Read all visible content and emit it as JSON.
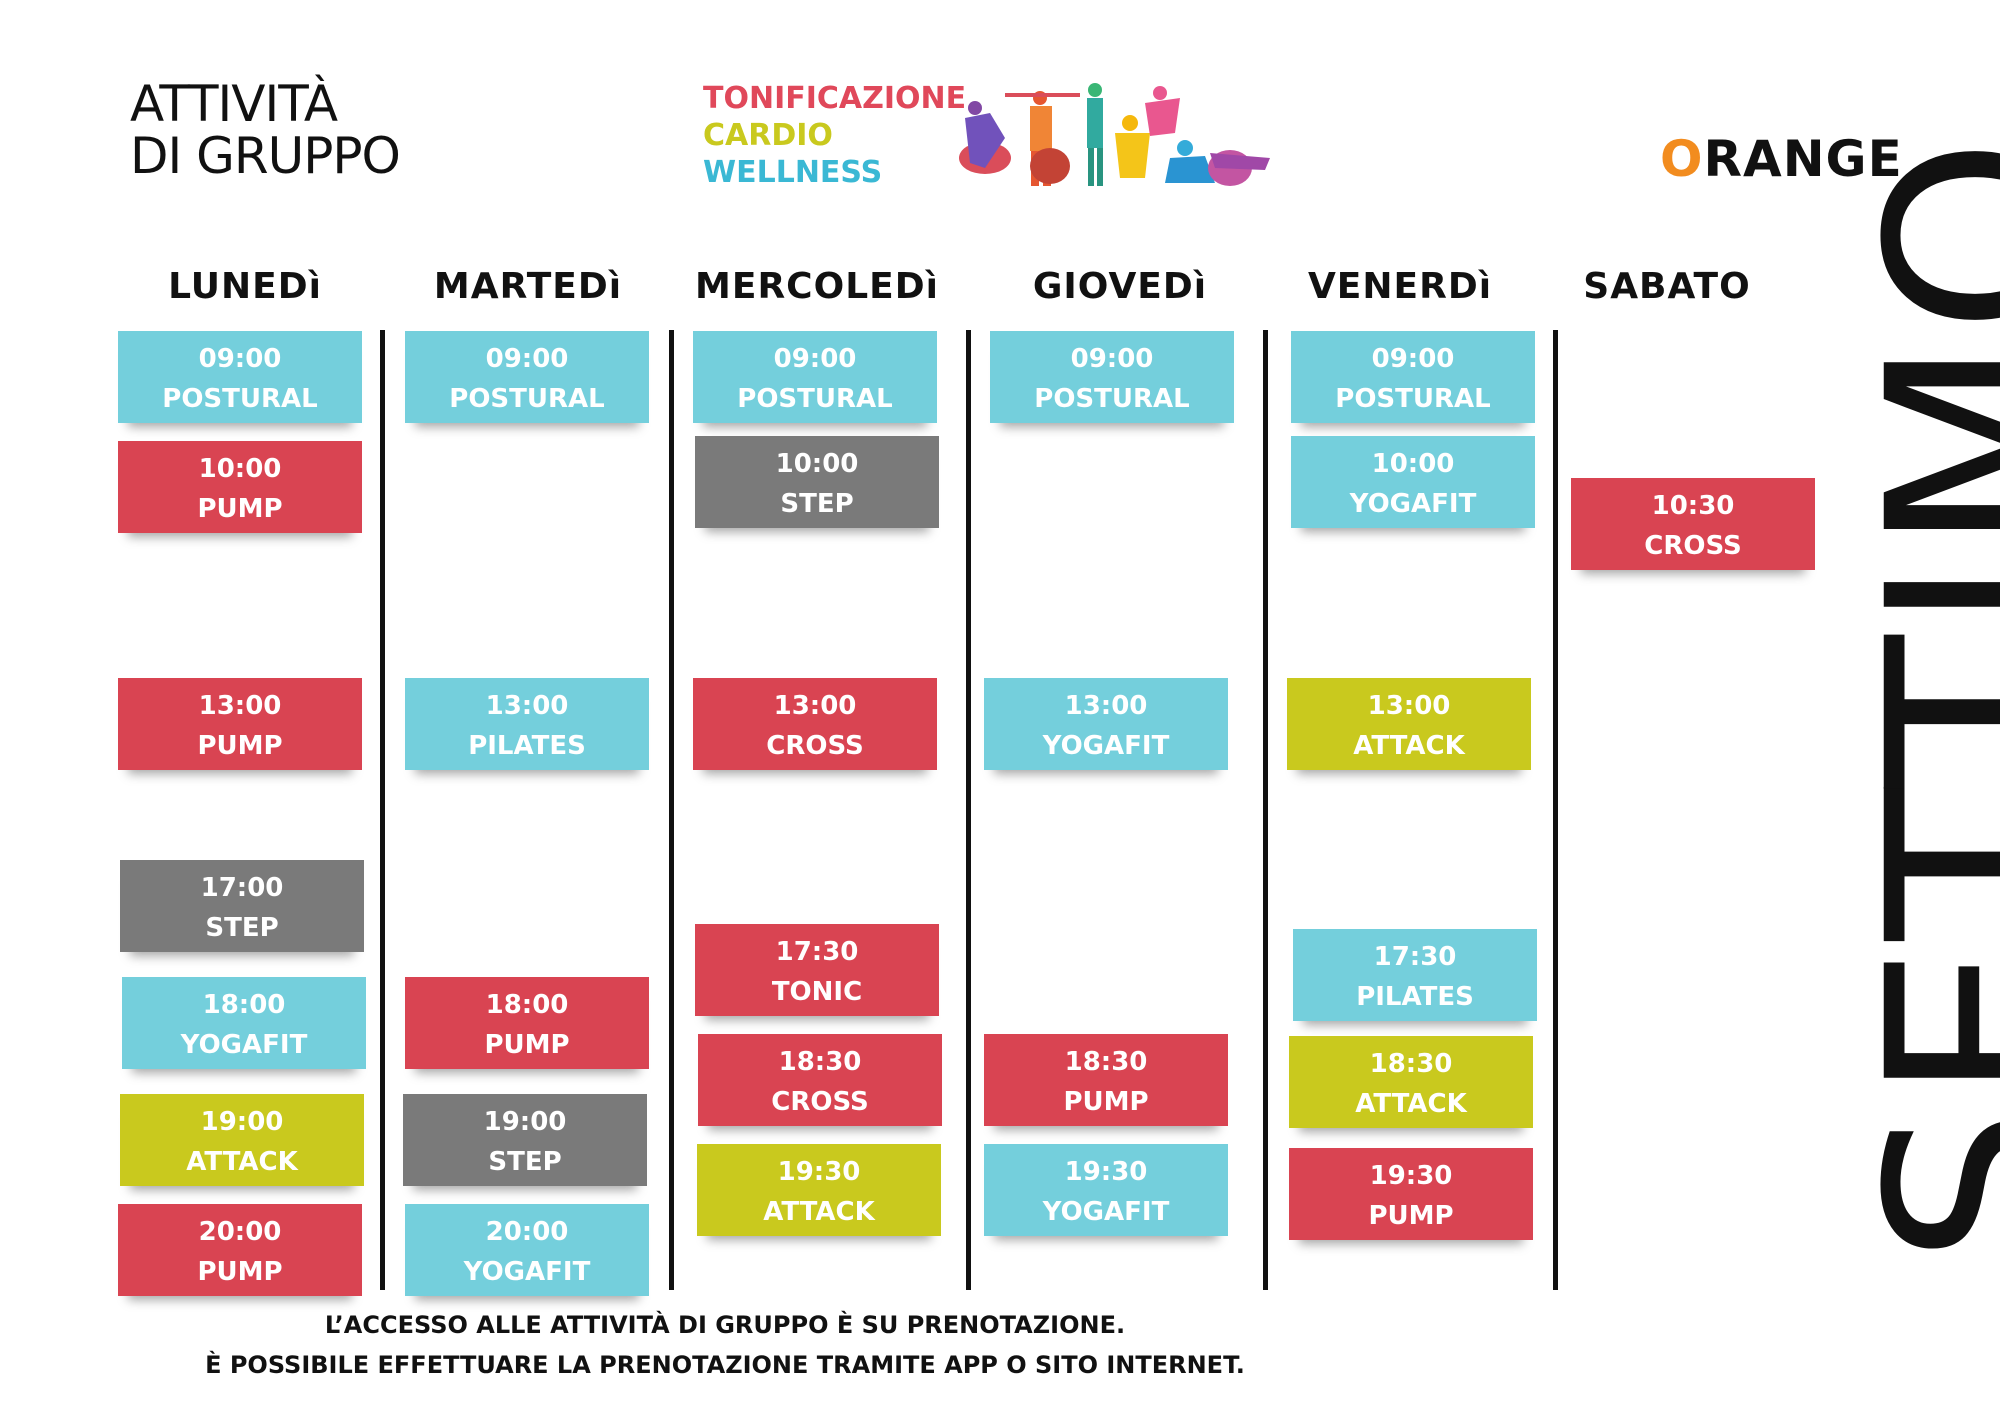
{
  "header": {
    "title_line1": "ATTIVITÀ",
    "title_line2": "DI GRUPPO",
    "categories": [
      {
        "label": "TONIFICAZIONE",
        "color": "#e0485a"
      },
      {
        "label": "CARDIO",
        "color": "#c9c91e"
      },
      {
        "label": "WELLNESS",
        "color": "#3ab8d4"
      }
    ],
    "logo_first": "O",
    "logo_rest": "RANGE",
    "logo_accent": "#f28c1f"
  },
  "days": [
    "LUNEDì",
    "MARTEDì",
    "MERCOLEDì",
    "GIOVEDì",
    "VENERDì",
    "SABATO"
  ],
  "colors": {
    "cyan": "#74cfdc",
    "red": "#d94452",
    "gray": "#7a7a7a",
    "lime": "#c9c91e"
  },
  "classes": {
    "mon": [
      {
        "time": "09:00",
        "name": "POSTURAL",
        "color": "cyan"
      },
      {
        "time": "10:00",
        "name": "PUMP",
        "color": "red"
      },
      {
        "time": "13:00",
        "name": "PUMP",
        "color": "red"
      },
      {
        "time": "17:00",
        "name": "STEP",
        "color": "gray"
      },
      {
        "time": "18:00",
        "name": "YOGAFIT",
        "color": "cyan"
      },
      {
        "time": "19:00",
        "name": "ATTACK",
        "color": "lime"
      },
      {
        "time": "20:00",
        "name": "PUMP",
        "color": "red"
      }
    ],
    "tue": [
      {
        "time": "09:00",
        "name": "POSTURAL",
        "color": "cyan"
      },
      {
        "time": "13:00",
        "name": "PILATES",
        "color": "cyan"
      },
      {
        "time": "18:00",
        "name": "PUMP",
        "color": "red"
      },
      {
        "time": "19:00",
        "name": "STEP",
        "color": "gray"
      },
      {
        "time": "20:00",
        "name": "YOGAFIT",
        "color": "cyan"
      }
    ],
    "wed": [
      {
        "time": "09:00",
        "name": "POSTURAL",
        "color": "cyan"
      },
      {
        "time": "10:00",
        "name": "STEP",
        "color": "gray"
      },
      {
        "time": "13:00",
        "name": "CROSS",
        "color": "red"
      },
      {
        "time": "17:30",
        "name": "TONIC",
        "color": "red"
      },
      {
        "time": "18:30",
        "name": "CROSS",
        "color": "red"
      },
      {
        "time": "19:30",
        "name": "ATTACK",
        "color": "lime"
      }
    ],
    "thu": [
      {
        "time": "09:00",
        "name": "POSTURAL",
        "color": "cyan"
      },
      {
        "time": "13:00",
        "name": "YOGAFIT",
        "color": "cyan"
      },
      {
        "time": "18:30",
        "name": "PUMP",
        "color": "red"
      },
      {
        "time": "19:30",
        "name": "YOGAFIT",
        "color": "cyan"
      }
    ],
    "fri": [
      {
        "time": "09:00",
        "name": "POSTURAL",
        "color": "cyan"
      },
      {
        "time": "10:00",
        "name": "YOGAFIT",
        "color": "cyan"
      },
      {
        "time": "13:00",
        "name": "ATTACK",
        "color": "lime"
      },
      {
        "time": "17:30",
        "name": "PILATES",
        "color": "cyan"
      },
      {
        "time": "18:30",
        "name": "ATTACK",
        "color": "lime"
      },
      {
        "time": "19:30",
        "name": "PUMP",
        "color": "red"
      }
    ],
    "sat": [
      {
        "time": "10:30",
        "name": "CROSS",
        "color": "red"
      }
    ]
  },
  "footer": {
    "line1": "L’ACCESSO ALLE ATTIVITÀ DI GRUPPO È SU PRENOTAZIONE.",
    "line2": "È POSSIBILE EFFETTUARE LA PRENOTAZIONE TRAMITE APP O SITO INTERNET."
  },
  "vertical_text": "SETTIMO"
}
